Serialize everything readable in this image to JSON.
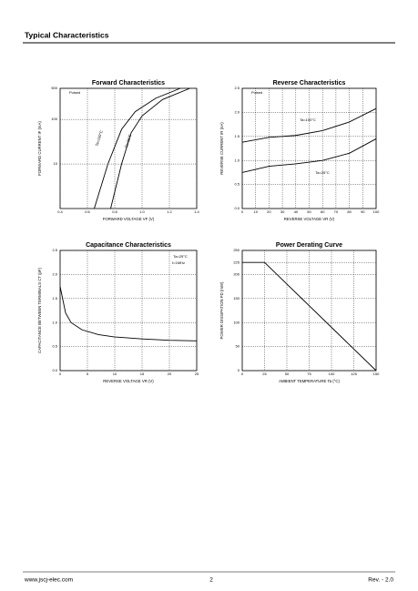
{
  "header": {
    "title": "Typical Characteristics"
  },
  "footer": {
    "website": "www.jscj-elec.com",
    "page": "2",
    "revision": "Rev. - 2.0"
  },
  "chart_data": [
    {
      "type": "line",
      "title": "Forward   Characteristics",
      "x_label": "FORWARD VOLTAGE  VF  (V)",
      "y_label": "FORWARD CURRENT  IF  (mA)",
      "log_y": true,
      "grid": true,
      "color": "#000000",
      "xlim": [
        0.4,
        1.4
      ],
      "xticks": [
        0.4,
        0.6,
        0.8,
        {
          "value": 1,
          "label": "1.0"
        },
        1.2,
        1.4
      ],
      "ylim": [
        1,
        500
      ],
      "yticks": [
        10,
        100,
        500
      ],
      "annotations": [
        "Pulsed"
      ],
      "series": [
        {
          "name": "Ta=100°C",
          "x": [
            0.65,
            0.75,
            0.85,
            0.95,
            1.1,
            1.28
          ],
          "values": [
            1,
            10,
            60,
            150,
            300,
            500
          ]
        },
        {
          "name": "Ta=25°C",
          "x": [
            0.77,
            0.85,
            0.92,
            1.0,
            1.15,
            1.35
          ],
          "values": [
            1,
            10,
            50,
            120,
            280,
            500
          ]
        }
      ]
    },
    {
      "type": "line",
      "title": "Reverse   Characteristics",
      "x_label": "REVERSE VOLTAGE  VR  (V)",
      "y_label": "REVERSE CURRENT  IR  (nA)",
      "grid": true,
      "color": "#000000",
      "xlim": [
        0,
        100
      ],
      "xticks": [
        0,
        10,
        20,
        30,
        40,
        50,
        60,
        70,
        80,
        90,
        100
      ],
      "ylim": [
        0,
        2.5
      ],
      "yticks": [
        {
          "value": 0,
          "label": "0.0"
        },
        0.5,
        {
          "value": 1,
          "label": "1.0"
        },
        1.5,
        {
          "value": 2,
          "label": "2.0"
        },
        2.5
      ],
      "annotations": [
        "Pulsed"
      ],
      "series": [
        {
          "name": "Ta=100°C",
          "x": [
            0,
            20,
            40,
            60,
            80,
            100
          ],
          "values": [
            1.38,
            1.48,
            1.52,
            1.62,
            1.8,
            2.08
          ]
        },
        {
          "name": "Ta=25°C",
          "x": [
            0,
            20,
            40,
            60,
            80,
            100
          ],
          "values": [
            0.75,
            0.88,
            0.93,
            1.0,
            1.15,
            1.45
          ]
        }
      ]
    },
    {
      "type": "line",
      "title": "Capacitance Characteristics",
      "x_label": "REVERSE VOLTAGE  VR  (V)",
      "y_label": "CAPACITANCE BETWEEN TERMINALS  CT  (pF)",
      "grid": true,
      "color": "#000000",
      "xlim": [
        0,
        25
      ],
      "xticks": [
        0,
        5,
        10,
        15,
        20,
        25
      ],
      "ylim": [
        0,
        2.5
      ],
      "yticks": [
        {
          "value": 0,
          "label": "0.0"
        },
        0.5,
        {
          "value": 1,
          "label": "1.0"
        },
        1.5,
        {
          "value": 2,
          "label": "2.0"
        },
        2.5
      ],
      "annotations": [
        "Ta=25°C",
        "f=1MHz"
      ],
      "series": [
        {
          "x": [
            0,
            1,
            2,
            4,
            7,
            10,
            15,
            20,
            25
          ],
          "values": [
            1.75,
            1.2,
            1.0,
            0.85,
            0.75,
            0.7,
            0.66,
            0.63,
            0.62
          ]
        }
      ]
    },
    {
      "type": "line",
      "title": "Power Derating Curve",
      "x_label": "AMBIENT TEMPERATURE   Ta   (°C)",
      "y_label": "POWER DISSIPATION  PD  (mW)",
      "grid": true,
      "color": "#000000",
      "xlim": [
        0,
        150
      ],
      "xticks": [
        0,
        25,
        50,
        75,
        100,
        125,
        150
      ],
      "ylim": [
        0,
        250
      ],
      "yticks": [
        0,
        50,
        100,
        150,
        200,
        225,
        250
      ],
      "series": [
        {
          "x": [
            0,
            25,
            150
          ],
          "values": [
            225,
            225,
            0
          ]
        }
      ]
    }
  ]
}
